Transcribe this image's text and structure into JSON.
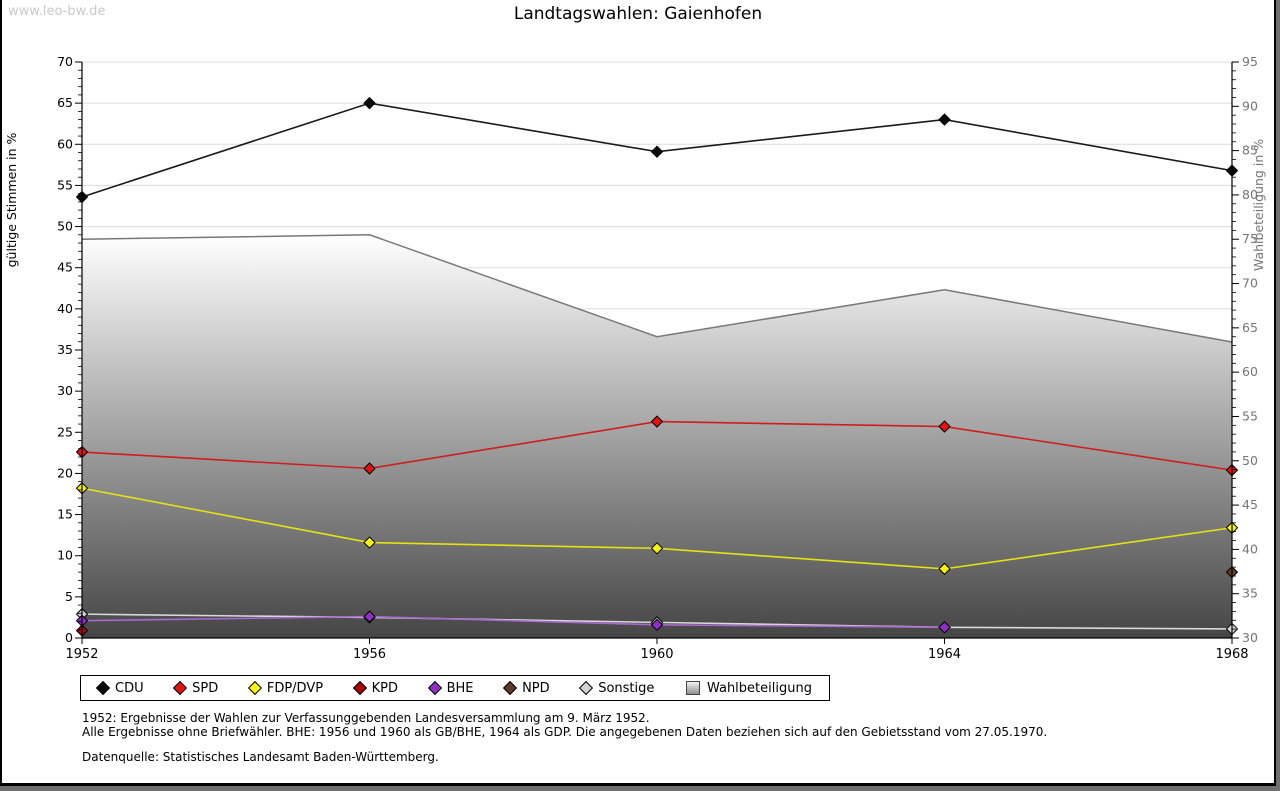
{
  "watermark": "www.leo-bw.de",
  "title": "Landtagswahlen: Gaienhofen",
  "chart_data": {
    "type": "line",
    "x": [
      1952,
      1956,
      1960,
      1964,
      1968
    ],
    "left_axis": {
      "label": "gültige Stimmen in %",
      "min": 0,
      "max": 70,
      "tick_step": 5,
      "minor_step": 1,
      "ticks": [
        0,
        5,
        10,
        15,
        20,
        25,
        30,
        35,
        40,
        45,
        50,
        55,
        60,
        65,
        70
      ]
    },
    "right_axis": {
      "label": "Wahlbeteiligung in %",
      "min": 30,
      "max": 95,
      "tick_step": 5,
      "minor_step": 1,
      "ticks": [
        30,
        35,
        40,
        45,
        50,
        55,
        60,
        65,
        70,
        75,
        80,
        85,
        90,
        95
      ]
    },
    "grid": "horizontal",
    "legend_position": "bottom",
    "series": [
      {
        "name": "Wahlbeteiligung",
        "kind": "area",
        "axis": "right",
        "line_color": "#787878",
        "fill_top": "#ffffff",
        "fill_bottom": "#454545",
        "values": [
          75.0,
          75.5,
          64.0,
          69.3,
          63.4
        ]
      },
      {
        "name": "Sonstige",
        "kind": "line",
        "axis": "left",
        "marker_color": "#d2d2d2",
        "line_color": "#d8d8d8",
        "values": [
          2.9,
          2.5,
          1.9,
          1.3,
          1.1
        ]
      },
      {
        "name": "BHE",
        "kind": "line",
        "axis": "left",
        "marker_color": "#8f2fc4",
        "line_color": "#a968cf",
        "values": [
          2.1,
          2.6,
          1.6,
          1.3,
          null
        ]
      },
      {
        "name": "KPD",
        "kind": "line",
        "axis": "left",
        "marker_color": "#a50b0b",
        "line_color": "#a50b0b",
        "values": [
          0.9,
          null,
          null,
          null,
          null
        ]
      },
      {
        "name": "NPD",
        "kind": "line",
        "axis": "left",
        "marker_color": "#5e3a27",
        "line_color": "#5e3a27",
        "values": [
          null,
          null,
          null,
          null,
          8.0
        ]
      },
      {
        "name": "FDP/DVP",
        "kind": "line",
        "axis": "left",
        "marker_color": "#f7f312",
        "line_color": "#e6e112",
        "values": [
          18.2,
          11.6,
          10.9,
          8.4,
          13.4
        ]
      },
      {
        "name": "SPD",
        "kind": "line",
        "axis": "left",
        "marker_color": "#e11313",
        "line_color": "#cf1d1d",
        "values": [
          22.6,
          20.6,
          26.3,
          25.7,
          20.4
        ]
      },
      {
        "name": "CDU",
        "kind": "line",
        "axis": "left",
        "marker_color": "#0a0a0a",
        "line_color": "#1a1a1a",
        "values": [
          53.6,
          65.0,
          59.1,
          63.0,
          56.8
        ]
      }
    ]
  },
  "legend": {
    "items": [
      {
        "label": "CDU",
        "marker": "diamond",
        "color": "#0a0a0a"
      },
      {
        "label": "SPD",
        "marker": "diamond",
        "color": "#e11313"
      },
      {
        "label": "FDP/DVP",
        "marker": "diamond",
        "color": "#f7f312"
      },
      {
        "label": "KPD",
        "marker": "diamond",
        "color": "#a50b0b"
      },
      {
        "label": "BHE",
        "marker": "diamond",
        "color": "#8f2fc4"
      },
      {
        "label": "NPD",
        "marker": "diamond",
        "color": "#5e3a27"
      },
      {
        "label": "Sonstige",
        "marker": "diamond",
        "color": "#d2d2d2"
      },
      {
        "label": "Wahlbeteiligung",
        "marker": "square",
        "color": "#bdbdbd"
      }
    ]
  },
  "footnotes": {
    "line1": "1952: Ergebnisse der Wahlen zur Verfassunggebenden Landesversammlung am 9. März 1952.",
    "line2": "Alle Ergebnisse ohne Briefwähler. BHE: 1956 und 1960 als GB/BHE, 1964 als GDP. Die angegebenen Daten beziehen sich auf den Gebietsstand vom 27.05.1970.",
    "source": "Datenquelle: Statistisches Landesamt Baden-Württemberg."
  }
}
